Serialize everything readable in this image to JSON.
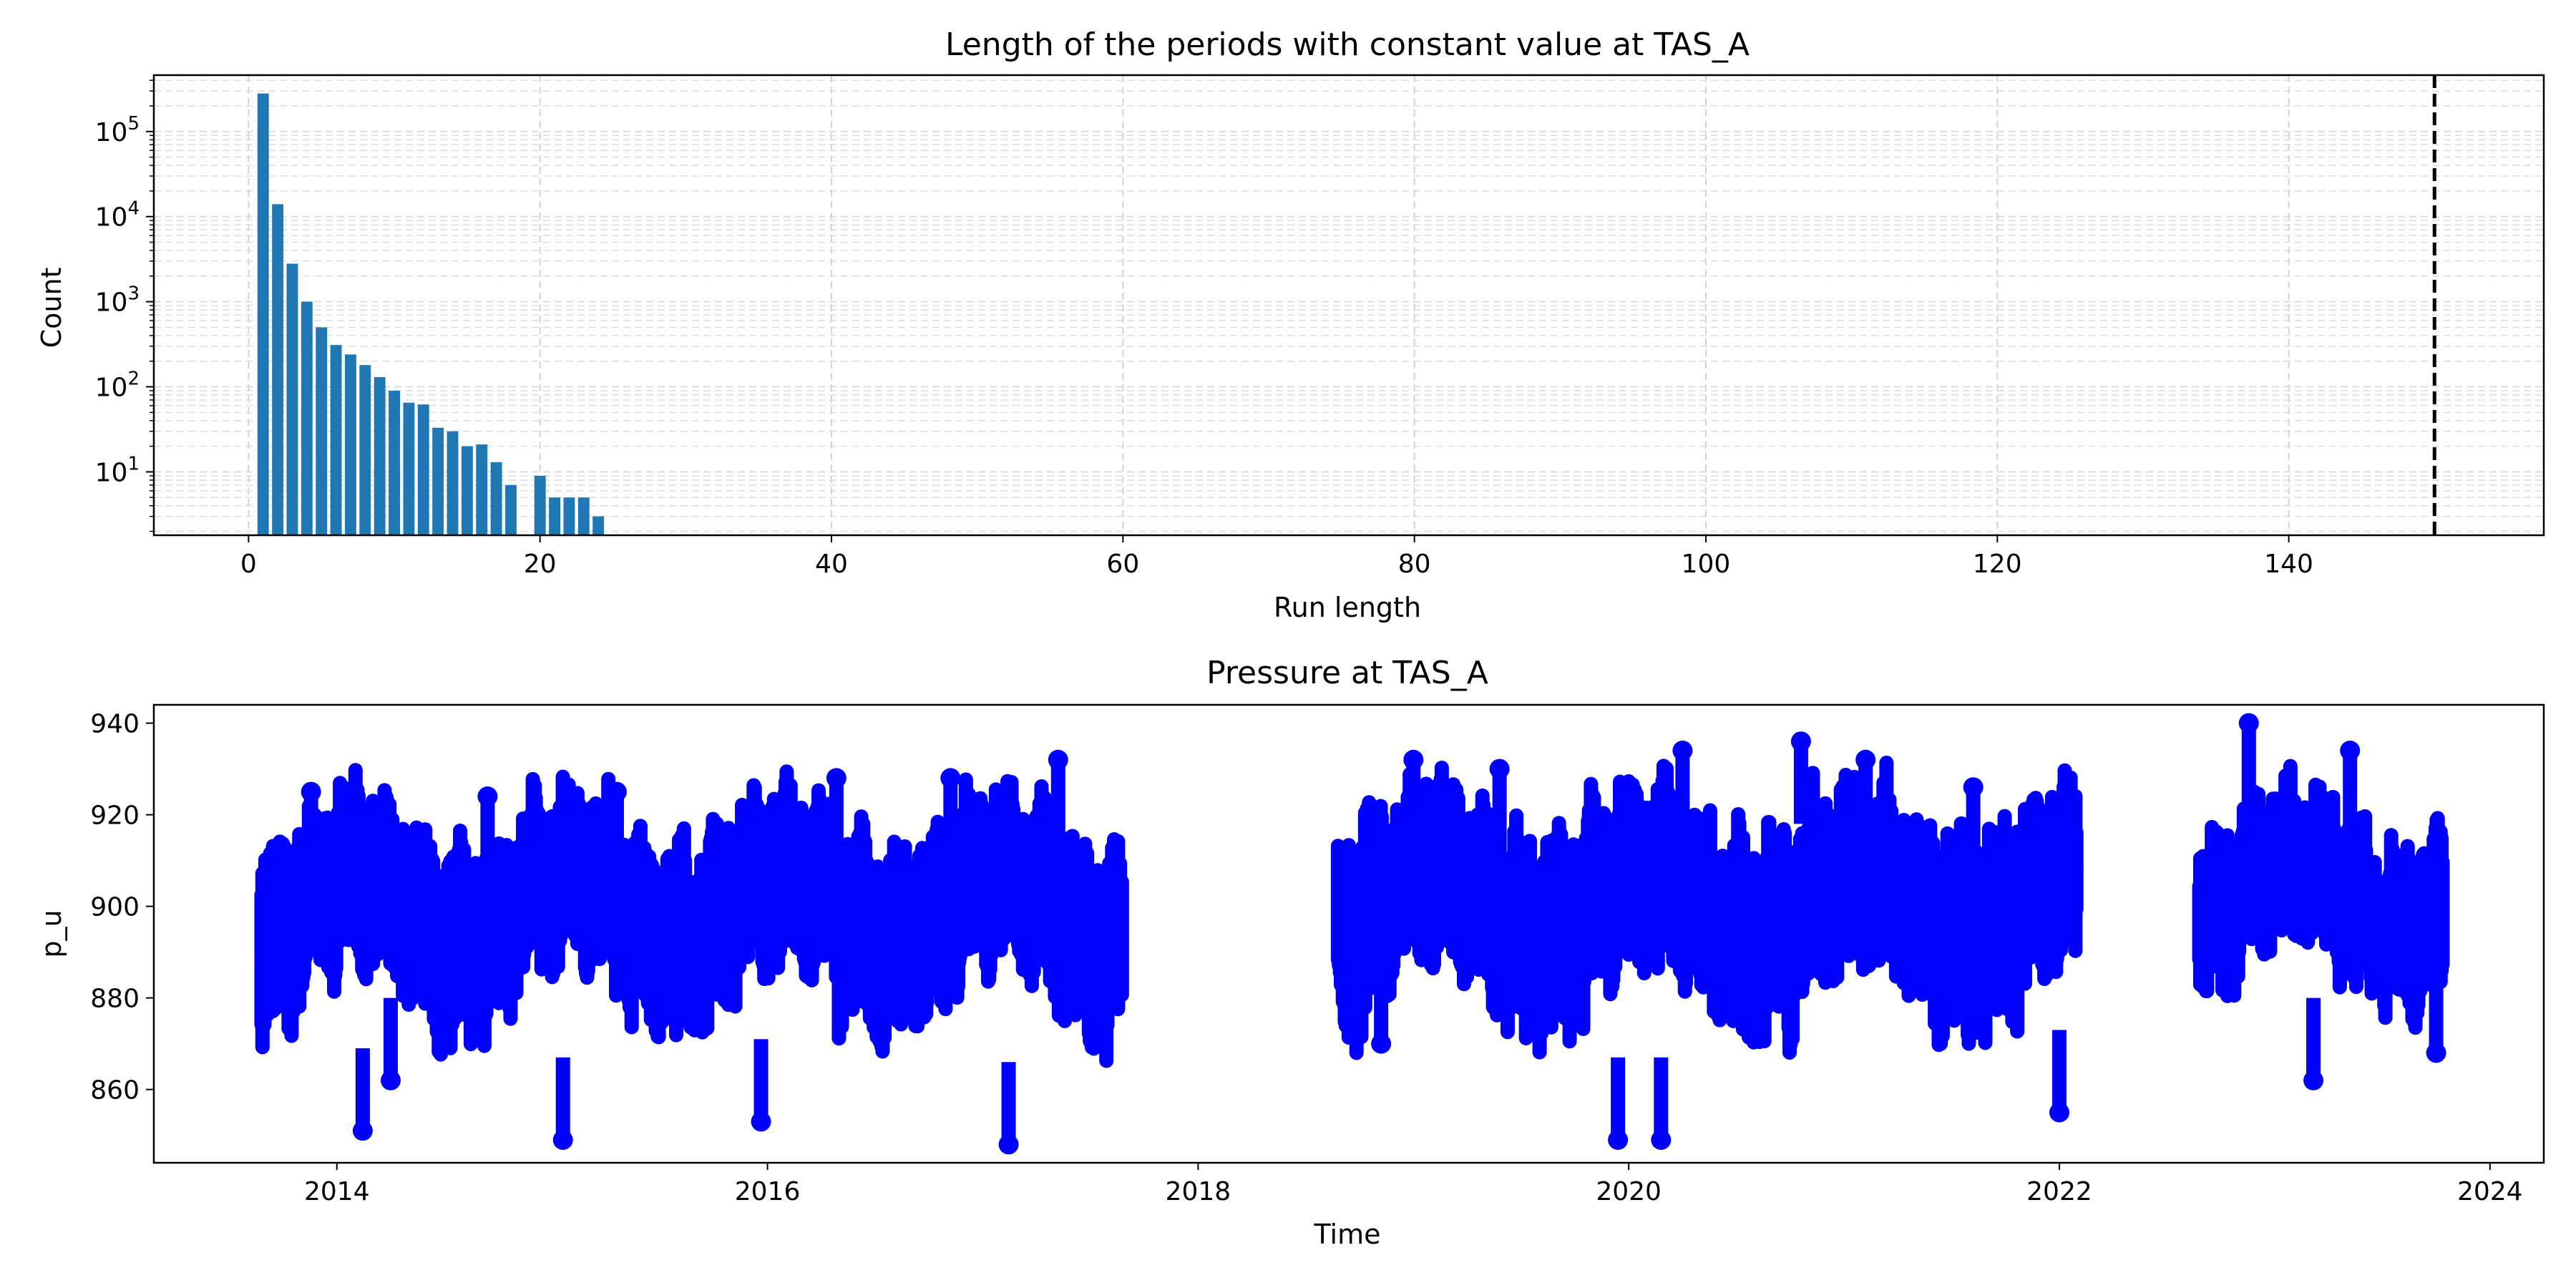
{
  "figure": {
    "background": "#ffffff"
  },
  "chart_data": [
    {
      "id": "runlength",
      "type": "bar",
      "title": "Length of the periods with constant value at TAS_A",
      "xlabel": "Run length",
      "ylabel": "Count",
      "xlim": [
        -6.5,
        157.5
      ],
      "ylim": [
        1.8,
        460000
      ],
      "yscale": "log",
      "grid": true,
      "bar_color": "#1f77b4",
      "threshold_line": {
        "x": 150,
        "style": "dashed",
        "color": "#000000"
      },
      "x_ticks": [
        0,
        20,
        40,
        60,
        80,
        100,
        120,
        140
      ],
      "y_ticks": [
        {
          "value": 10,
          "base": "10",
          "exp": "1"
        },
        {
          "value": 100,
          "base": "10",
          "exp": "2"
        },
        {
          "value": 1000,
          "base": "10",
          "exp": "3"
        },
        {
          "value": 10000,
          "base": "10",
          "exp": "4"
        },
        {
          "value": 100000,
          "base": "10",
          "exp": "5"
        }
      ],
      "x": [
        1,
        2,
        3,
        4,
        5,
        6,
        7,
        8,
        9,
        10,
        11,
        12,
        13,
        14,
        15,
        16,
        17,
        18,
        19,
        20,
        21,
        22,
        23,
        24
      ],
      "values": [
        280000,
        14000,
        2800,
        1000,
        500,
        310,
        240,
        180,
        130,
        90,
        65,
        62,
        33,
        30,
        20,
        21,
        13,
        7,
        0,
        9,
        5,
        5,
        5,
        3
      ]
    },
    {
      "id": "pressure",
      "type": "scatter",
      "title": "Pressure at TAS_A",
      "xlabel": "Time",
      "ylabel": "p_u",
      "xlim": [
        2013.15,
        2024.25
      ],
      "ylim": [
        844,
        944
      ],
      "marker_color": "#0000ff",
      "grid": false,
      "x_ticks": [
        2014,
        2016,
        2018,
        2020,
        2022,
        2024
      ],
      "y_ticks": [
        860,
        880,
        900,
        920,
        940
      ],
      "segments": [
        {
          "x": [
            2013.65,
            2017.65
          ],
          "base": 900,
          "amplitude": 16
        },
        {
          "x": [
            2018.65,
            2022.08
          ],
          "base": 901,
          "amplitude": 17
        },
        {
          "x": [
            2022.65,
            2023.78
          ],
          "base": 903,
          "amplitude": 14
        }
      ],
      "extremes": [
        {
          "x": 2013.72,
          "y": 881
        },
        {
          "x": 2013.88,
          "y": 925
        },
        {
          "x": 2014.12,
          "y": 851
        },
        {
          "x": 2014.25,
          "y": 862
        },
        {
          "x": 2014.7,
          "y": 924
        },
        {
          "x": 2015.05,
          "y": 849
        },
        {
          "x": 2015.3,
          "y": 925
        },
        {
          "x": 2015.97,
          "y": 853
        },
        {
          "x": 2016.32,
          "y": 928
        },
        {
          "x": 2016.85,
          "y": 928
        },
        {
          "x": 2017.12,
          "y": 848
        },
        {
          "x": 2017.35,
          "y": 932
        },
        {
          "x": 2018.85,
          "y": 870
        },
        {
          "x": 2019.0,
          "y": 932
        },
        {
          "x": 2019.4,
          "y": 930
        },
        {
          "x": 2019.95,
          "y": 849
        },
        {
          "x": 2020.15,
          "y": 849
        },
        {
          "x": 2020.25,
          "y": 934
        },
        {
          "x": 2020.8,
          "y": 936
        },
        {
          "x": 2021.1,
          "y": 932
        },
        {
          "x": 2021.6,
          "y": 926
        },
        {
          "x": 2022.0,
          "y": 855
        },
        {
          "x": 2022.88,
          "y": 940
        },
        {
          "x": 2023.18,
          "y": 862
        },
        {
          "x": 2023.35,
          "y": 934
        },
        {
          "x": 2023.75,
          "y": 868
        }
      ]
    }
  ]
}
